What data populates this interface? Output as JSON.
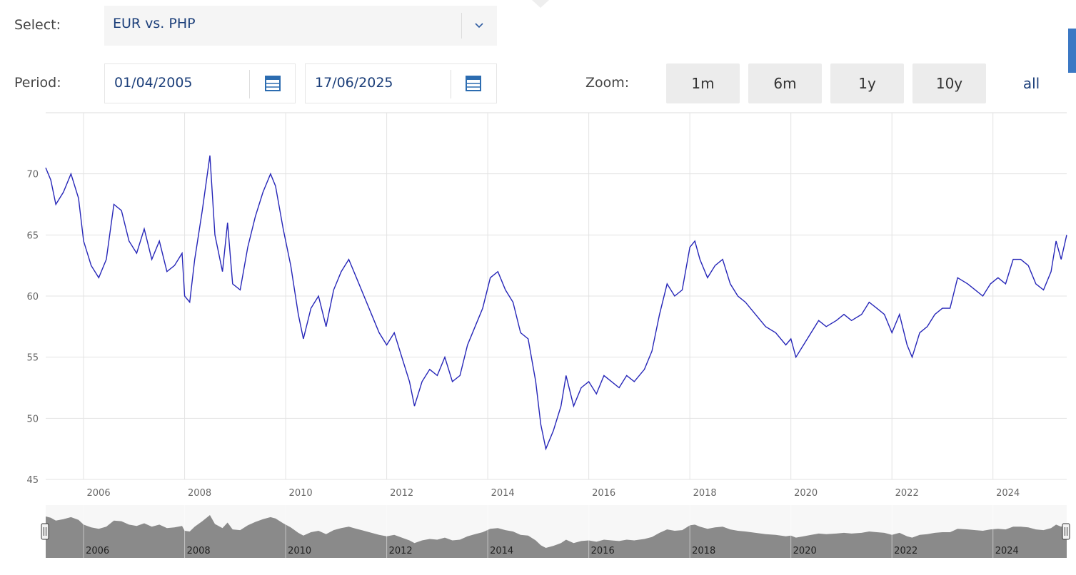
{
  "controls": {
    "select_label": "Select:",
    "select_value": "EUR vs. PHP",
    "period_label": "Period:",
    "start_date": "01/04/2005",
    "end_date": "17/06/2025",
    "zoom_label": "Zoom:",
    "zoom_buttons": [
      "1m",
      "6m",
      "1y",
      "10y",
      "all"
    ]
  },
  "chart_data": {
    "type": "line",
    "grid": true,
    "xlim": [
      2005.25,
      2025.46
    ],
    "xticks": [
      2006,
      2008,
      2010,
      2012,
      2014,
      2016,
      2018,
      2020,
      2022,
      2024
    ],
    "ylim": [
      45,
      75
    ],
    "yticks": [
      45,
      50,
      55,
      60,
      65,
      70
    ],
    "series": [
      {
        "name": "EUR vs. PHP",
        "color": "#2626b8",
        "x": [
          2005.25,
          2005.35,
          2005.45,
          2005.6,
          2005.75,
          2005.9,
          2006.0,
          2006.15,
          2006.3,
          2006.45,
          2006.6,
          2006.75,
          2006.9,
          2007.05,
          2007.2,
          2007.35,
          2007.5,
          2007.65,
          2007.8,
          2007.95,
          2008.0,
          2008.1,
          2008.2,
          2008.35,
          2008.5,
          2008.6,
          2008.75,
          2008.85,
          2008.95,
          2009.1,
          2009.25,
          2009.4,
          2009.55,
          2009.7,
          2009.8,
          2009.95,
          2010.1,
          2010.25,
          2010.35,
          2010.5,
          2010.65,
          2010.8,
          2010.95,
          2011.1,
          2011.25,
          2011.4,
          2011.55,
          2011.7,
          2011.85,
          2012.0,
          2012.15,
          2012.3,
          2012.45,
          2012.55,
          2012.7,
          2012.85,
          2013.0,
          2013.15,
          2013.3,
          2013.45,
          2013.6,
          2013.75,
          2013.9,
          2014.05,
          2014.2,
          2014.35,
          2014.5,
          2014.65,
          2014.8,
          2014.95,
          2015.05,
          2015.15,
          2015.3,
          2015.45,
          2015.55,
          2015.7,
          2015.85,
          2016.0,
          2016.15,
          2016.3,
          2016.45,
          2016.6,
          2016.75,
          2016.9,
          2017.1,
          2017.25,
          2017.4,
          2017.55,
          2017.7,
          2017.85,
          2018.0,
          2018.1,
          2018.2,
          2018.35,
          2018.5,
          2018.65,
          2018.8,
          2018.95,
          2019.1,
          2019.3,
          2019.5,
          2019.7,
          2019.9,
          2020.0,
          2020.1,
          2020.25,
          2020.4,
          2020.55,
          2020.7,
          2020.9,
          2021.05,
          2021.2,
          2021.4,
          2021.55,
          2021.7,
          2021.85,
          2022.0,
          2022.15,
          2022.3,
          2022.4,
          2022.55,
          2022.7,
          2022.85,
          2023.0,
          2023.15,
          2023.3,
          2023.5,
          2023.65,
          2023.8,
          2023.95,
          2024.1,
          2024.25,
          2024.4,
          2024.55,
          2024.7,
          2024.85,
          2025.0,
          2025.15,
          2025.25,
          2025.35,
          2025.46
        ],
        "values": [
          70.5,
          69.5,
          67.5,
          68.5,
          70,
          68,
          64.5,
          62.5,
          61.5,
          63,
          67.5,
          67,
          64.5,
          63.5,
          65.5,
          63,
          64.5,
          62,
          62.5,
          63.5,
          60,
          59.5,
          63,
          67,
          71.5,
          65,
          62,
          66,
          61,
          60.5,
          64,
          66.5,
          68.5,
          70,
          69,
          65.5,
          62.5,
          58.5,
          56.5,
          59,
          60,
          57.5,
          60.5,
          62,
          63,
          61.5,
          60,
          58.5,
          57,
          56,
          57,
          55,
          53,
          51,
          53,
          54,
          53.5,
          55,
          53,
          53.5,
          56,
          57.5,
          59,
          61.5,
          62,
          60.5,
          59.5,
          57,
          56.5,
          53,
          49.5,
          47.5,
          49,
          51,
          53.5,
          51,
          52.5,
          53,
          52,
          53.5,
          53,
          52.5,
          53.5,
          53,
          54,
          55.5,
          58.5,
          61,
          60,
          60.5,
          64,
          64.5,
          63,
          61.5,
          62.5,
          63,
          61,
          60,
          59.5,
          58.5,
          57.5,
          57,
          56,
          56.5,
          55,
          56,
          57,
          58,
          57.5,
          58,
          58.5,
          58,
          58.5,
          59.5,
          59,
          58.5,
          57,
          58.5,
          56,
          55,
          57,
          57.5,
          58.5,
          59,
          59,
          61.5,
          61,
          60.5,
          60,
          61,
          61.5,
          61,
          63,
          63,
          62.5,
          61,
          60.5,
          62,
          64.5,
          63,
          65
        ]
      }
    ]
  }
}
